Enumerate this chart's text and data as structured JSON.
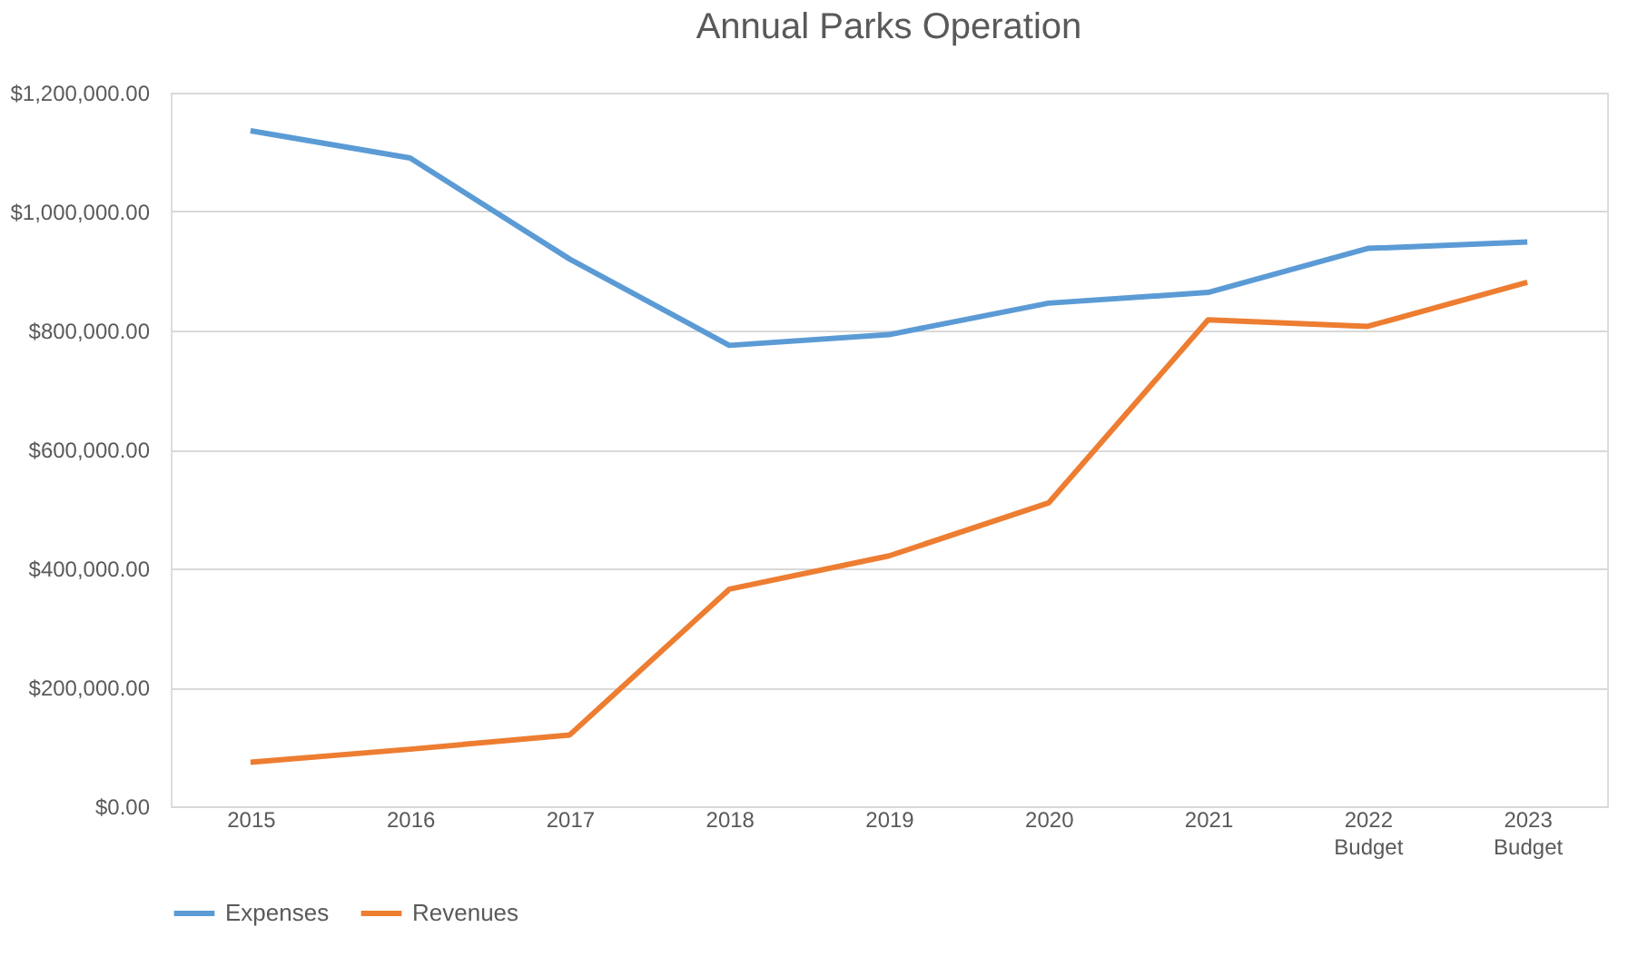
{
  "chart_data": {
    "type": "line",
    "title": "Annual Parks Operation",
    "categories": [
      "2015",
      "2016",
      "2017",
      "2018",
      "2019",
      "2020",
      "2021",
      "2022\nBudget",
      "2023\nBudget"
    ],
    "series": [
      {
        "name": "Expenses",
        "color": "#5b9bd5",
        "values": [
          1136000,
          1090000,
          920000,
          775000,
          793000,
          846000,
          864000,
          938000,
          949000
        ]
      },
      {
        "name": "Revenues",
        "color": "#ed7d31",
        "values": [
          74000,
          96000,
          120000,
          365000,
          421000,
          510000,
          818000,
          807000,
          881000
        ]
      }
    ],
    "ylim": [
      0,
      1200000
    ],
    "yticks": [
      {
        "value": 0,
        "label": "$0.00"
      },
      {
        "value": 200000,
        "label": "$200,000.00"
      },
      {
        "value": 400000,
        "label": "$400,000.00"
      },
      {
        "value": 600000,
        "label": "$600,000.00"
      },
      {
        "value": 800000,
        "label": "$800,000.00"
      },
      {
        "value": 1000000,
        "label": "$1,000,000.00"
      },
      {
        "value": 1200000,
        "label": "$1,200,000.00"
      }
    ],
    "grid": "y",
    "legend": "bottom",
    "marker": "none",
    "line_style": "solid"
  }
}
